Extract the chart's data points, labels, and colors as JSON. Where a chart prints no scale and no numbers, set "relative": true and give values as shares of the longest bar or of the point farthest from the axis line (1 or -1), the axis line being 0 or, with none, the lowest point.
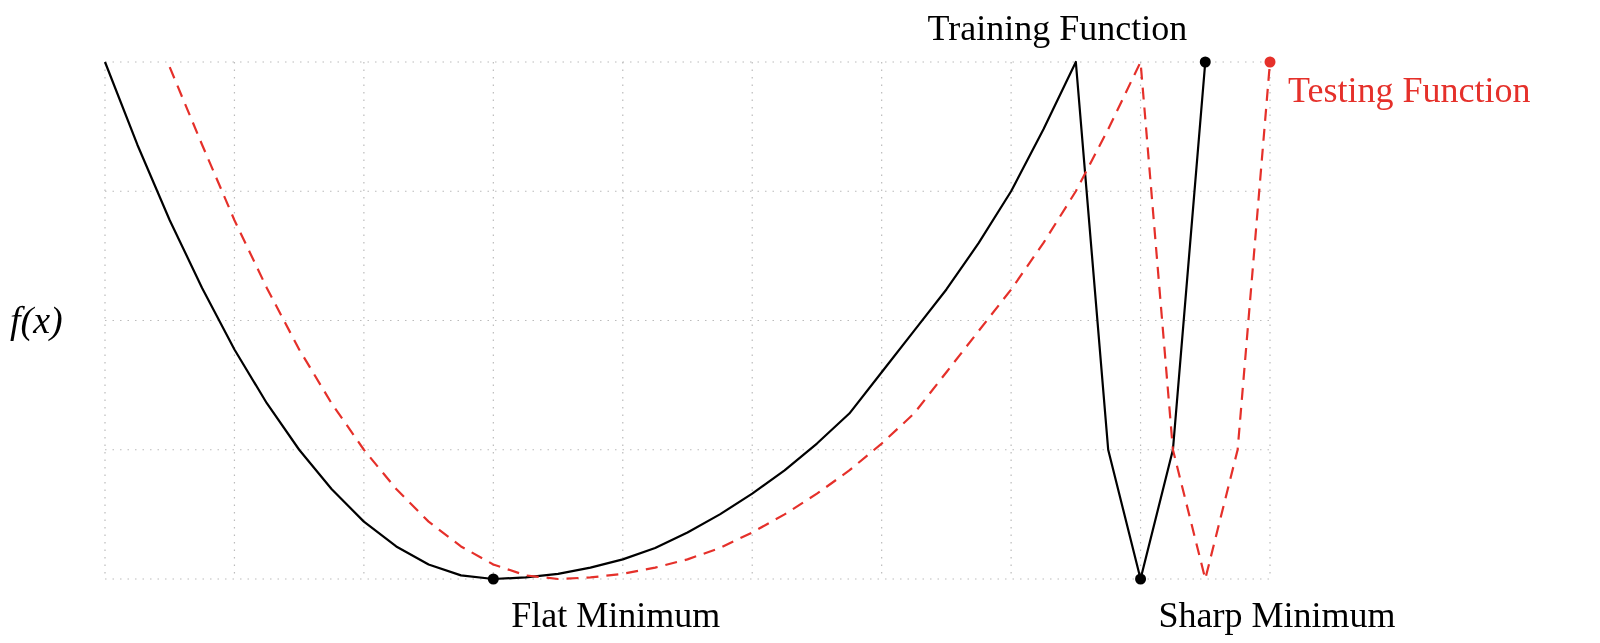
{
  "chart_data": {
    "type": "line",
    "ylabel": "f(x)",
    "relative": true,
    "grid": true,
    "legend": "top right",
    "categories": [
      null,
      null,
      null,
      null,
      null,
      null,
      null,
      null,
      null,
      null,
      null,
      null,
      null,
      null,
      null,
      null,
      null,
      null,
      null,
      null,
      null,
      null,
      null,
      null,
      null,
      null,
      null,
      null,
      null,
      null,
      null,
      null,
      null,
      null,
      null,
      null,
      null
    ],
    "series": [
      {
        "name": "Training Function",
        "color": "#000000",
        "line_style": "solid",
        "values": [
          1,
          0.84,
          0.694,
          0.563,
          0.444,
          0.34,
          0.25,
          0.174,
          0.111,
          0.063,
          0.028,
          0.007,
          0,
          0.003,
          0.01,
          0.022,
          0.038,
          0.06,
          0.09,
          0.125,
          0.165,
          0.21,
          0.262,
          0.32,
          0.4,
          0.48,
          0.56,
          0.65,
          0.75,
          0.87,
          1,
          0.25,
          0,
          0.25,
          1,
          null,
          null
        ]
      },
      {
        "name": "Testing Function",
        "color": "#e5302a",
        "line_style": "dashed",
        "values": [
          null,
          null,
          0.99,
          0.84,
          0.694,
          0.563,
          0.444,
          0.34,
          0.25,
          0.174,
          0.111,
          0.063,
          0.028,
          0.007,
          0,
          0.003,
          0.01,
          0.022,
          0.038,
          0.06,
          0.09,
          0.125,
          0.165,
          0.21,
          0.262,
          0.32,
          0.4,
          0.48,
          0.56,
          0.65,
          0.75,
          0.87,
          1,
          0.25,
          0,
          0.25,
          1
        ]
      }
    ],
    "annotations": [
      "Flat Minimum",
      "Sharp Minimum"
    ]
  }
}
